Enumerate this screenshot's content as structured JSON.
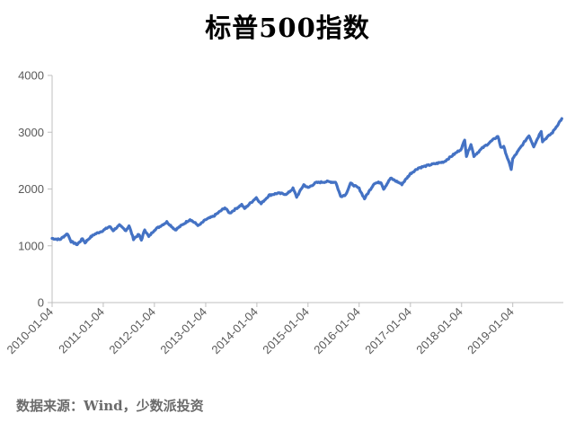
{
  "chart_data": {
    "type": "line",
    "title": "标普500指数",
    "xlabel": "",
    "ylabel": "",
    "ylim": [
      0,
      4000
    ],
    "yticks": [
      "0",
      "1000",
      "2000",
      "3000",
      "4000"
    ],
    "x_ticks": [
      "2010-01-04",
      "2011-01-04",
      "2012-01-04",
      "2013-01-04",
      "2014-01-04",
      "2015-01-04",
      "2016-01-04",
      "2017-01-04",
      "2018-01-04",
      "2019-01-04"
    ],
    "grid": false,
    "line_color": "#4472C4",
    "series": [
      {
        "x": [
          "2010-01-04",
          "2010-03-01",
          "2010-04-23",
          "2010-05-20",
          "2010-07-02",
          "2010-08-09",
          "2010-08-27",
          "2010-10-01",
          "2010-11-01",
          "2011-01-04",
          "2011-02-18",
          "2011-03-16",
          "2011-04-29",
          "2011-06-15",
          "2011-07-07",
          "2011-08-08",
          "2011-09-15",
          "2011-10-03",
          "2011-10-27",
          "2011-11-25",
          "2012-01-04",
          "2012-04-02",
          "2012-06-01",
          "2012-09-14",
          "2012-11-15",
          "2013-01-04",
          "2013-03-01",
          "2013-05-21",
          "2013-06-24",
          "2013-09-18",
          "2013-10-08",
          "2013-12-31",
          "2014-02-03",
          "2014-04-01",
          "2014-06-01",
          "2014-08-07",
          "2014-09-19",
          "2014-10-15",
          "2014-12-05",
          "2015-01-04",
          "2015-03-01",
          "2015-05-21",
          "2015-07-08",
          "2015-07-20",
          "2015-08-25",
          "2015-09-30",
          "2015-11-03",
          "2016-01-04",
          "2016-02-11",
          "2016-04-20",
          "2016-06-08",
          "2016-06-27",
          "2016-08-15",
          "2016-11-04",
          "2017-01-04",
          "2017-03-01",
          "2017-06-01",
          "2017-09-01",
          "2018-01-04",
          "2018-01-26",
          "2018-02-08",
          "2018-03-12",
          "2018-04-02",
          "2018-06-01",
          "2018-09-20",
          "2018-10-11",
          "2018-11-01",
          "2018-12-24",
          "2019-01-04",
          "2019-04-30",
          "2019-06-03",
          "2019-07-26",
          "2019-08-05",
          "2019-10-15",
          "2019-12-20"
        ],
        "y": [
          1130,
          1110,
          1215,
          1075,
          1022,
          1125,
          1055,
          1145,
          1200,
          1270,
          1340,
          1270,
          1360,
          1270,
          1355,
          1120,
          1200,
          1100,
          1285,
          1160,
          1280,
          1420,
          1280,
          1465,
          1355,
          1460,
          1520,
          1670,
          1575,
          1725,
          1655,
          1848,
          1740,
          1890,
          1925,
          1910,
          2010,
          1860,
          2075,
          2020,
          2110,
          2130,
          2120,
          2125,
          1870,
          1900,
          2100,
          2010,
          1830,
          2100,
          2120,
          2000,
          2190,
          2085,
          2270,
          2370,
          2430,
          2480,
          2710,
          2873,
          2580,
          2790,
          2580,
          2720,
          2930,
          2740,
          2740,
          2350,
          2530,
          2945,
          2750,
          3025,
          2840,
          2995,
          3240
        ]
      }
    ]
  },
  "source_text": "数据来源：Wind，少数派投资"
}
